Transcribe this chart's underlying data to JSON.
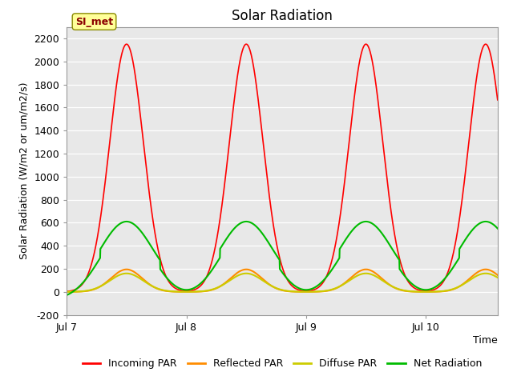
{
  "title": "Solar Radiation",
  "ylabel": "Solar Radiation (W/m2 or um/m2/s)",
  "xlabel": "Time",
  "ylim": [
    -200,
    2300
  ],
  "yticks": [
    -200,
    0,
    200,
    400,
    600,
    800,
    1000,
    1200,
    1400,
    1600,
    1800,
    2000,
    2200
  ],
  "xtick_labels": [
    "Jul 7",
    "Jul 8",
    "Jul 9",
    "Jul 10"
  ],
  "label_box_text": "SI_met",
  "label_box_color": "#FFFF99",
  "label_box_border": "#888800",
  "bg_color": "#E8E8E8",
  "lines": {
    "incoming_par": {
      "label": "Incoming PAR",
      "color": "#FF0000",
      "peak": 2150
    },
    "reflected_par": {
      "label": "Reflected PAR",
      "color": "#FF8C00",
      "peak": 195
    },
    "diffuse_par": {
      "label": "Diffuse PAR",
      "color": "#CCCC00",
      "peak": 160
    },
    "net_radiation": {
      "label": "Net Radiation",
      "color": "#00BB00",
      "peak": 610,
      "night_val": -75
    }
  },
  "n_days": 3.6,
  "points_per_day": 480,
  "figsize": [
    6.4,
    4.8
  ],
  "dpi": 100
}
